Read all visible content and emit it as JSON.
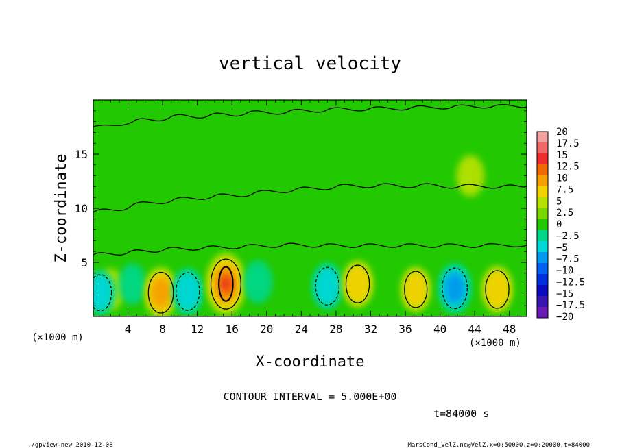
{
  "chart_data": {
    "type": "heatmap",
    "title": "vertical velocity",
    "xlabel": "X-coordinate",
    "ylabel": "Z-coordinate",
    "x_unit": "(×1000 m)",
    "y_unit": "(×1000 m)",
    "xlim": [
      0,
      50
    ],
    "ylim": [
      0,
      20
    ],
    "x_ticks": [
      4,
      8,
      12,
      16,
      20,
      24,
      28,
      32,
      36,
      40,
      44,
      48
    ],
    "y_ticks": [
      5,
      10,
      15
    ],
    "contour_interval_text": "CONTOUR INTERVAL = 5.000E+00",
    "time_text": "t=84000 s",
    "colorbar": {
      "labels": [
        "20",
        "17.5",
        "15",
        "12.5",
        "10",
        "7.5",
        "5",
        "2.5",
        "0",
        "−2.5",
        "−5",
        "−7.5",
        "−10",
        "−12.5",
        "−15",
        "−17.5",
        "−20"
      ],
      "colors": [
        "#f2a0a0",
        "#f06868",
        "#ee2d2d",
        "#f06a00",
        "#f5a000",
        "#f2d200",
        "#b5e100",
        "#7ad600",
        "#22c800",
        "#00d787",
        "#00d7d7",
        "#0099ee",
        "#0060f0",
        "#0030dd",
        "#0a0abf",
        "#3a15b0",
        "#6a1ab5"
      ]
    },
    "features": [
      {
        "type": "updraft",
        "x": 2.0,
        "z": 2.5,
        "peak": 3
      },
      {
        "type": "downdraft",
        "x": 4.5,
        "z": 3.0,
        "peak": -3
      },
      {
        "type": "updraft",
        "x": 7.8,
        "z": 2.2,
        "peak": 8
      },
      {
        "type": "downdraft",
        "x": 10.9,
        "z": 2.3,
        "peak": -6
      },
      {
        "type": "updraft",
        "x": 15.3,
        "z": 3.0,
        "peak": 14
      },
      {
        "type": "downdraft",
        "x": 19.0,
        "z": 3.2,
        "peak": -4
      },
      {
        "type": "downdraft",
        "x": 27.0,
        "z": 2.8,
        "peak": -6
      },
      {
        "type": "updraft",
        "x": 30.5,
        "z": 3.0,
        "peak": 6
      },
      {
        "type": "updraft",
        "x": 37.2,
        "z": 2.5,
        "peak": 5
      },
      {
        "type": "downdraft",
        "x": 41.7,
        "z": 2.6,
        "peak": -8
      },
      {
        "type": "updraft",
        "x": 46.6,
        "z": 2.5,
        "peak": 6
      },
      {
        "type": "downdraft",
        "x": 0.8,
        "z": 2.2,
        "peak": -5
      },
      {
        "type": "updraft",
        "x": 43.5,
        "z": 13.0,
        "peak": 3
      }
    ]
  },
  "footer": {
    "left": "./gpview-new  2010-12-08",
    "right": "MarsCond_VelZ.nc@VelZ,x=0:50000,z=0:20000,t=84000"
  }
}
